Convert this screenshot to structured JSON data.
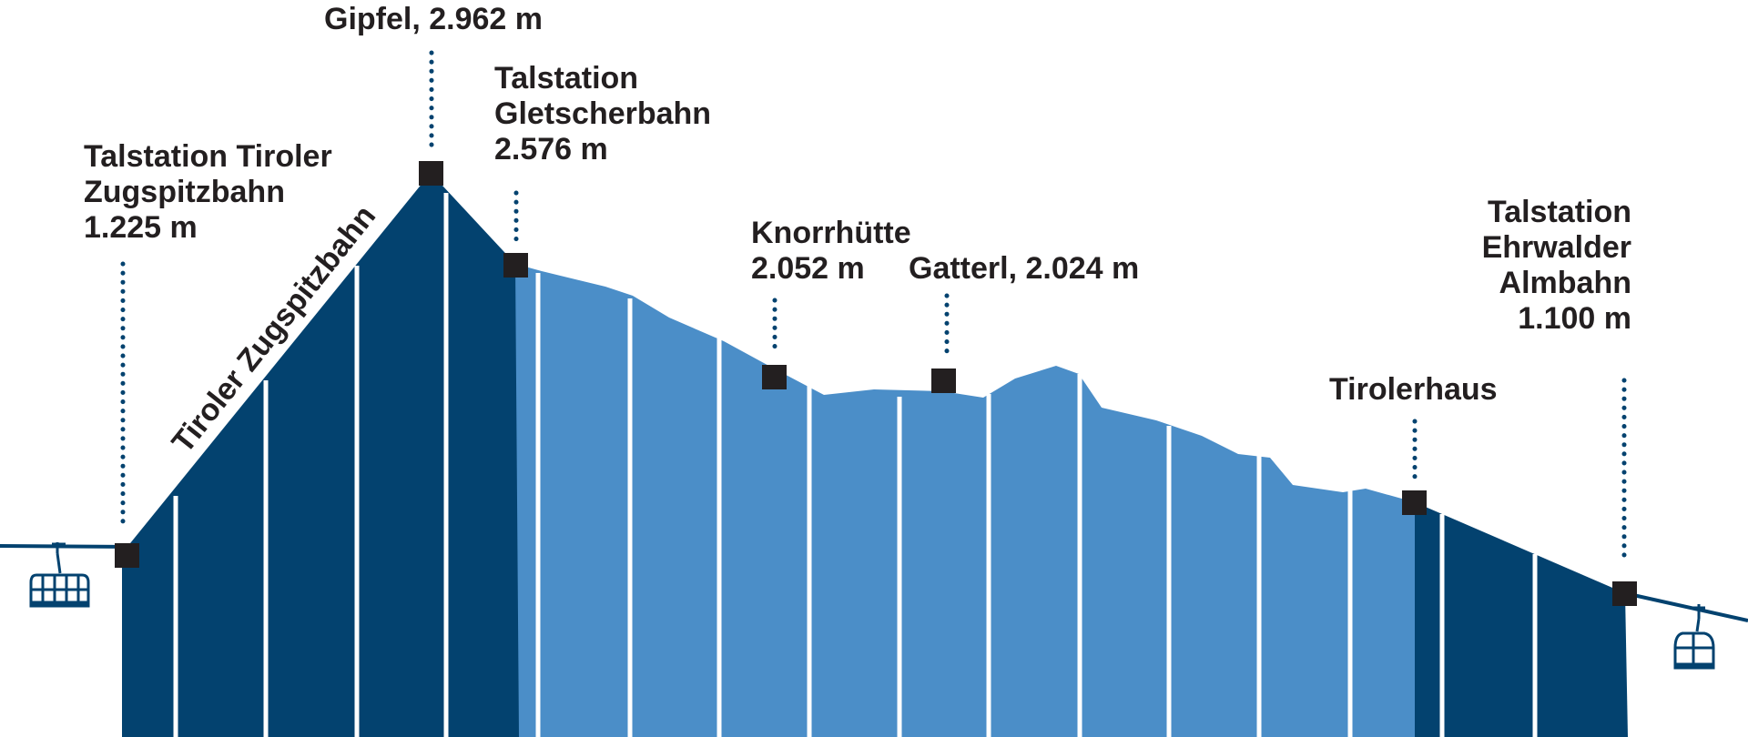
{
  "colors": {
    "dark_profile": "#03426f",
    "light_profile": "#4b8ec8",
    "marker": "#231f20",
    "dotted_line": "#03426f",
    "text": "#231f20",
    "cable": "#03426f"
  },
  "stations": [
    {
      "id": "talstation-tiroler-zugspitzbahn",
      "lines": [
        "Talstation Tiroler",
        "Zugspitzbahn",
        "1.225 m"
      ]
    },
    {
      "id": "gipfel",
      "lines": [
        "Gipfel, 2.962 m"
      ]
    },
    {
      "id": "talstation-gletscherbahn",
      "lines": [
        "Talstation",
        "Gletscherbahn",
        "2.576 m"
      ]
    },
    {
      "id": "knorrhuette",
      "lines": [
        "Knorrhütte",
        "2.052 m"
      ]
    },
    {
      "id": "gatterl",
      "lines": [
        "Gatterl, 2.024 m"
      ]
    },
    {
      "id": "tirolerhaus",
      "lines": [
        "Tirolerhaus"
      ]
    },
    {
      "id": "talstation-ehrwalder-almbahn",
      "lines": [
        "Talstation",
        "Ehrwalder",
        "Almbahn",
        "1.100 m"
      ]
    }
  ],
  "cableway_label": "Tiroler Zugspitzbahn",
  "icons": [
    "gondola-cabin-icon",
    "gondola-cabin-icon"
  ]
}
